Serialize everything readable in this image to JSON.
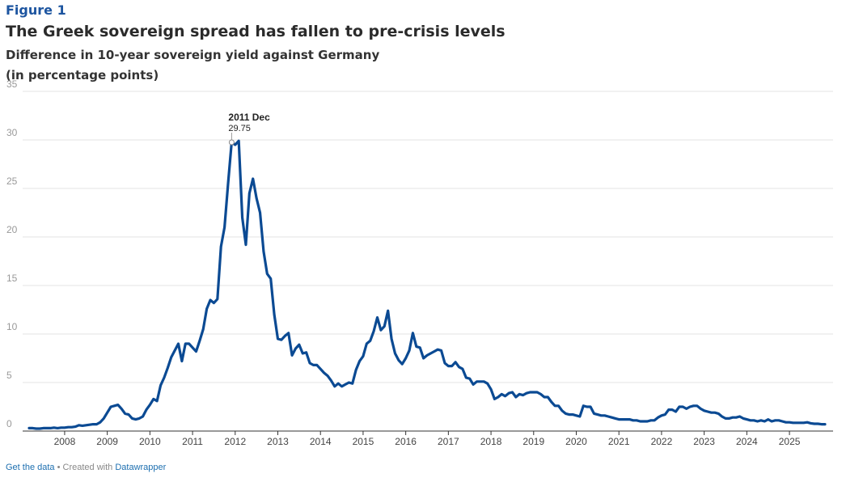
{
  "figure_label": "Figure 1",
  "footer": {
    "data_link": "Get the data",
    "created_with": "• Created with",
    "tool_link": "Datawrapper"
  },
  "chart_data": {
    "type": "line",
    "title": "The Greek sovereign spread has fallen to pre-crisis levels",
    "subtitle": "Difference in 10-year sovereign yield against Germany",
    "unit_note": "(in percentage points)",
    "color": "#0b4a93",
    "grid": true,
    "xlim": [
      "2007-03",
      "2025-11"
    ],
    "xticks": [
      2008,
      2009,
      2010,
      2011,
      2012,
      2013,
      2014,
      2015,
      2016,
      2017,
      2018,
      2019,
      2020,
      2021,
      2022,
      2023,
      2024,
      2025
    ],
    "ylim": [
      0,
      35
    ],
    "yticks": [
      0,
      5,
      10,
      15,
      20,
      25,
      30,
      35
    ],
    "annotation": {
      "x": "2011-12",
      "title": "2011 Dec",
      "label": "29.75"
    },
    "x": [
      "2007-03",
      "2007-04",
      "2007-05",
      "2007-06",
      "2007-07",
      "2007-08",
      "2007-09",
      "2007-10",
      "2007-11",
      "2007-12",
      "2008-01",
      "2008-02",
      "2008-03",
      "2008-04",
      "2008-05",
      "2008-06",
      "2008-07",
      "2008-08",
      "2008-09",
      "2008-10",
      "2008-11",
      "2008-12",
      "2009-01",
      "2009-02",
      "2009-03",
      "2009-04",
      "2009-05",
      "2009-06",
      "2009-07",
      "2009-08",
      "2009-09",
      "2009-10",
      "2009-11",
      "2009-12",
      "2010-01",
      "2010-02",
      "2010-03",
      "2010-04",
      "2010-05",
      "2010-06",
      "2010-07",
      "2010-08",
      "2010-09",
      "2010-10",
      "2010-11",
      "2010-12",
      "2011-01",
      "2011-02",
      "2011-03",
      "2011-04",
      "2011-05",
      "2011-06",
      "2011-07",
      "2011-08",
      "2011-09",
      "2011-10",
      "2011-11",
      "2011-12",
      "2012-01",
      "2012-02",
      "2012-03",
      "2012-04",
      "2012-05",
      "2012-06",
      "2012-07",
      "2012-08",
      "2012-09",
      "2012-10",
      "2012-11",
      "2012-12",
      "2013-01",
      "2013-02",
      "2013-03",
      "2013-04",
      "2013-05",
      "2013-06",
      "2013-07",
      "2013-08",
      "2013-09",
      "2013-10",
      "2013-11",
      "2013-12",
      "2014-01",
      "2014-02",
      "2014-03",
      "2014-04",
      "2014-05",
      "2014-06",
      "2014-07",
      "2014-08",
      "2014-09",
      "2014-10",
      "2014-11",
      "2014-12",
      "2015-01",
      "2015-02",
      "2015-03",
      "2015-04",
      "2015-05",
      "2015-06",
      "2015-07",
      "2015-08",
      "2015-09",
      "2015-10",
      "2015-11",
      "2015-12",
      "2016-01",
      "2016-02",
      "2016-03",
      "2016-04",
      "2016-05",
      "2016-06",
      "2016-07",
      "2016-08",
      "2016-09",
      "2016-10",
      "2016-11",
      "2016-12",
      "2017-01",
      "2017-02",
      "2017-03",
      "2017-04",
      "2017-05",
      "2017-06",
      "2017-07",
      "2017-08",
      "2017-09",
      "2017-10",
      "2017-11",
      "2017-12",
      "2018-01",
      "2018-02",
      "2018-03",
      "2018-04",
      "2018-05",
      "2018-06",
      "2018-07",
      "2018-08",
      "2018-09",
      "2018-10",
      "2018-11",
      "2018-12",
      "2019-01",
      "2019-02",
      "2019-03",
      "2019-04",
      "2019-05",
      "2019-06",
      "2019-07",
      "2019-08",
      "2019-09",
      "2019-10",
      "2019-11",
      "2019-12",
      "2020-01",
      "2020-02",
      "2020-03",
      "2020-04",
      "2020-05",
      "2020-06",
      "2020-07",
      "2020-08",
      "2020-09",
      "2020-10",
      "2020-11",
      "2020-12",
      "2021-01",
      "2021-02",
      "2021-03",
      "2021-04",
      "2021-05",
      "2021-06",
      "2021-07",
      "2021-08",
      "2021-09",
      "2021-10",
      "2021-11",
      "2021-12",
      "2022-01",
      "2022-02",
      "2022-03",
      "2022-04",
      "2022-05",
      "2022-06",
      "2022-07",
      "2022-08",
      "2022-09",
      "2022-10",
      "2022-11",
      "2022-12",
      "2023-01",
      "2023-02",
      "2023-03",
      "2023-04",
      "2023-05",
      "2023-06",
      "2023-07",
      "2023-08",
      "2023-09",
      "2023-10",
      "2023-11",
      "2023-12",
      "2024-01",
      "2024-02",
      "2024-03",
      "2024-04",
      "2024-05",
      "2024-06",
      "2024-07",
      "2024-08",
      "2024-09",
      "2024-10",
      "2024-11",
      "2024-12",
      "2025-01",
      "2025-02",
      "2025-03",
      "2025-04",
      "2025-05",
      "2025-06",
      "2025-07",
      "2025-08",
      "2025-09",
      "2025-10",
      "2025-11"
    ],
    "values": [
      0.3,
      0.3,
      0.25,
      0.25,
      0.3,
      0.3,
      0.3,
      0.35,
      0.3,
      0.35,
      0.35,
      0.4,
      0.4,
      0.45,
      0.6,
      0.55,
      0.6,
      0.65,
      0.7,
      0.7,
      0.9,
      1.3,
      1.9,
      2.5,
      2.6,
      2.7,
      2.3,
      1.8,
      1.7,
      1.3,
      1.2,
      1.3,
      1.5,
      2.2,
      2.7,
      3.3,
      3.1,
      4.7,
      5.5,
      6.5,
      7.6,
      8.3,
      9.0,
      7.2,
      9.0,
      9.0,
      8.6,
      8.2,
      9.3,
      10.5,
      12.6,
      13.5,
      13.2,
      13.6,
      19.0,
      21.0,
      25.5,
      29.75,
      29.5,
      29.9,
      22.0,
      19.2,
      24.5,
      26.0,
      24.0,
      22.5,
      18.5,
      16.2,
      15.7,
      12.0,
      9.5,
      9.4,
      9.8,
      10.1,
      7.8,
      8.5,
      8.9,
      8.0,
      8.1,
      7.0,
      6.8,
      6.8,
      6.4,
      6.0,
      5.7,
      5.2,
      4.6,
      4.9,
      4.6,
      4.8,
      5.0,
      4.9,
      6.3,
      7.2,
      7.7,
      9.0,
      9.3,
      10.3,
      11.7,
      10.4,
      10.8,
      12.4,
      9.5,
      8.0,
      7.3,
      6.9,
      7.5,
      8.3,
      10.1,
      8.7,
      8.6,
      7.5,
      7.8,
      8.0,
      8.2,
      8.4,
      8.3,
      7.0,
      6.7,
      6.7,
      7.1,
      6.6,
      6.4,
      5.5,
      5.4,
      4.8,
      5.1,
      5.1,
      5.1,
      4.9,
      4.3,
      3.3,
      3.5,
      3.8,
      3.6,
      3.9,
      4.0,
      3.5,
      3.8,
      3.7,
      3.9,
      4.0,
      4.0,
      4.0,
      3.8,
      3.5,
      3.5,
      3.0,
      2.6,
      2.6,
      2.1,
      1.8,
      1.7,
      1.7,
      1.6,
      1.5,
      2.6,
      2.5,
      2.5,
      1.8,
      1.7,
      1.6,
      1.6,
      1.5,
      1.4,
      1.3,
      1.2,
      1.2,
      1.2,
      1.2,
      1.1,
      1.1,
      1.0,
      1.0,
      1.0,
      1.1,
      1.1,
      1.4,
      1.6,
      1.7,
      2.2,
      2.2,
      2.0,
      2.5,
      2.5,
      2.3,
      2.5,
      2.6,
      2.6,
      2.3,
      2.1,
      2.0,
      1.9,
      1.9,
      1.8,
      1.5,
      1.3,
      1.3,
      1.4,
      1.4,
      1.5,
      1.3,
      1.2,
      1.1,
      1.1,
      1.0,
      1.1,
      1.0,
      1.2,
      1.0,
      1.1,
      1.1,
      1.0,
      0.9,
      0.9,
      0.85,
      0.85,
      0.85,
      0.85,
      0.9,
      0.8,
      0.75,
      0.75,
      0.7,
      0.7
    ]
  }
}
